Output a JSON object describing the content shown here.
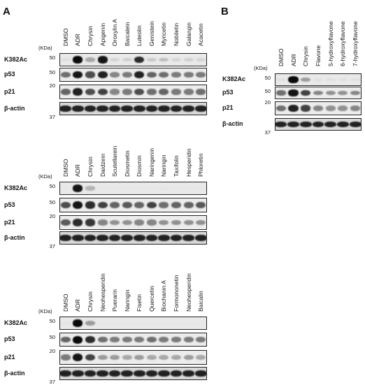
{
  "panels": [
    {
      "id": "A",
      "letter": "A",
      "kda_label": "(KDa)",
      "lanes": [
        "DMSO",
        "ADR",
        "Chrysin",
        "Apigenin",
        "Oroxylin A",
        "Baicalein",
        "Luteolin",
        "Genistein",
        "Myricetin",
        "Nobiletin",
        "Galangin",
        "Acacetin"
      ],
      "rows": [
        {
          "label": "K382Ac",
          "mw": "50",
          "kind": "ac",
          "intensity": [
            0.05,
            1.0,
            0.3,
            0.95,
            0.1,
            0.12,
            0.85,
            0.15,
            0.2,
            0.1,
            0.12,
            0.1
          ]
        },
        {
          "label": "p53",
          "mw": "50",
          "kind": "p53",
          "intensity": [
            0.55,
            0.95,
            0.7,
            0.9,
            0.45,
            0.5,
            0.9,
            0.6,
            0.55,
            0.5,
            0.5,
            0.5
          ]
        },
        {
          "label": "p21",
          "mw": "20",
          "kind": "p21",
          "intensity": [
            0.6,
            0.9,
            0.7,
            0.75,
            0.45,
            0.5,
            0.7,
            0.55,
            0.6,
            0.5,
            0.5,
            0.55
          ]
        },
        {
          "label": "β-actin",
          "mw": "37",
          "kind": "actin",
          "intensity": [
            0.9,
            0.9,
            0.9,
            0.9,
            0.9,
            0.9,
            0.9,
            0.9,
            0.9,
            0.9,
            0.9,
            0.9
          ]
        }
      ]
    },
    {
      "id": "A2",
      "letter": "",
      "kda_label": "(KDa)",
      "lanes": [
        "DMSO",
        "ADR",
        "Chrysin",
        "Daidzein",
        "Scutellarein",
        "Diosmetin",
        "Diosmin",
        "Naringenin",
        "Naringin",
        "Taxifolin",
        "Hesperidin",
        "Phloretin"
      ],
      "rows": [
        {
          "label": "K382Ac",
          "mw": "50",
          "kind": "ac",
          "intensity": [
            0.02,
            0.95,
            0.25,
            0.02,
            0.02,
            0.02,
            0.02,
            0.02,
            0.03,
            0.02,
            0.02,
            0.02
          ]
        },
        {
          "label": "p53",
          "mw": "50",
          "kind": "p53",
          "intensity": [
            0.7,
            0.95,
            0.85,
            0.75,
            0.6,
            0.65,
            0.6,
            0.75,
            0.55,
            0.6,
            0.6,
            0.65
          ]
        },
        {
          "label": "p21",
          "mw": "20",
          "kind": "p21",
          "intensity": [
            0.65,
            0.85,
            0.8,
            0.45,
            0.4,
            0.4,
            0.45,
            0.45,
            0.4,
            0.4,
            0.4,
            0.4
          ]
        },
        {
          "label": "β-actin",
          "mw": "37",
          "kind": "actin",
          "intensity": [
            0.9,
            0.9,
            0.9,
            0.9,
            0.9,
            0.9,
            0.9,
            0.9,
            0.9,
            0.9,
            0.9,
            0.9
          ]
        }
      ]
    },
    {
      "id": "A3",
      "letter": "",
      "kda_label": "(KDa)",
      "lanes": [
        "DMSO",
        "ADR",
        "Chrysin",
        "Neohesperidin",
        "Puerarin",
        "Naringin",
        "Fisetin",
        "Quercetin",
        "Biochanin A",
        "Formononetin",
        "Neohesperidin",
        "Baicalin"
      ],
      "rows": [
        {
          "label": "K382Ac",
          "mw": "50",
          "kind": "ac",
          "intensity": [
            0.03,
            1.0,
            0.35,
            0.02,
            0.02,
            0.02,
            0.02,
            0.02,
            0.02,
            0.02,
            0.02,
            0.02
          ]
        },
        {
          "label": "p53",
          "mw": "50",
          "kind": "p53",
          "intensity": [
            0.6,
            1.0,
            0.85,
            0.55,
            0.5,
            0.5,
            0.5,
            0.55,
            0.5,
            0.5,
            0.5,
            0.5
          ]
        },
        {
          "label": "p21",
          "mw": "20",
          "kind": "p21",
          "intensity": [
            0.5,
            0.95,
            0.75,
            0.35,
            0.35,
            0.3,
            0.35,
            0.3,
            0.3,
            0.3,
            0.35,
            0.3
          ]
        },
        {
          "label": "β-actin",
          "mw": "37",
          "kind": "actin",
          "intensity": [
            0.9,
            0.9,
            0.9,
            0.9,
            0.9,
            0.9,
            0.9,
            0.9,
            0.9,
            0.9,
            0.9,
            0.9
          ]
        }
      ]
    },
    {
      "id": "B",
      "letter": "B",
      "kda_label": "(KDa)",
      "lanes": [
        "DMSO",
        "ADR",
        "Chrysin",
        "Flavone",
        "5-hydroxyflavone",
        "6-hydroxyflavone",
        "7-hydroxyflavone"
      ],
      "rows": [
        {
          "label": "K382Ac",
          "mw": "50",
          "kind": "ac",
          "intensity": [
            0.05,
            1.0,
            0.35,
            0.05,
            0.05,
            0.05,
            0.05
          ]
        },
        {
          "label": "p53",
          "mw": "50",
          "kind": "p53",
          "intensity": [
            0.55,
            0.95,
            0.75,
            0.45,
            0.4,
            0.4,
            0.45
          ]
        },
        {
          "label": "p21",
          "mw": "20",
          "kind": "p21",
          "intensity": [
            0.55,
            0.9,
            0.75,
            0.45,
            0.4,
            0.4,
            0.45
          ]
        },
        {
          "label": "β-actin",
          "mw": "37",
          "kind": "actin",
          "intensity": [
            0.9,
            0.9,
            0.9,
            0.9,
            0.9,
            0.9,
            0.9
          ]
        }
      ]
    }
  ]
}
